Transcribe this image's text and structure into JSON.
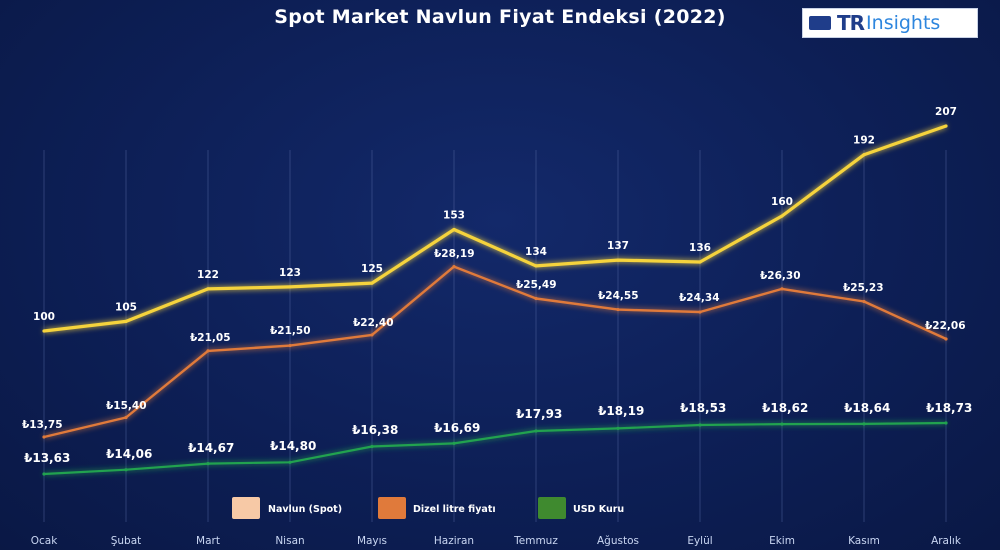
{
  "title": "Spot Market Navlun Fiyat Endeksi (2022)",
  "logo": {
    "brand_bold": "TR",
    "brand_light": "Insights",
    "icon": "truck-icon"
  },
  "colors": {
    "background": "#0d1f56",
    "navlun": "#f5d33c",
    "dizel": "#e07a3b",
    "usd": "#21a24f",
    "gridline": "#5a6ea8"
  },
  "chart_data": {
    "type": "line",
    "categories": [
      "Ocak",
      "Şubat",
      "Mart",
      "Nisan",
      "Mayıs",
      "Haziran",
      "Temmuz",
      "Ağustos",
      "Eylül",
      "Ekim",
      "Kasım",
      "Aralık"
    ],
    "grid": "vertical",
    "legend_position": "bottom",
    "series": [
      {
        "name": "Navlun (Spot)",
        "values": [
          100,
          105,
          122,
          123,
          125,
          153,
          134,
          137,
          136,
          160,
          192,
          207
        ],
        "labels": [
          "100",
          "105",
          "122",
          "123",
          "125",
          "153",
          "134",
          "137",
          "136",
          "160",
          "192",
          "207"
        ]
      },
      {
        "name": "Dizel litre fiyatı",
        "values": [
          13.75,
          15.4,
          21.05,
          21.5,
          22.4,
          28.19,
          25.49,
          24.55,
          24.34,
          26.3,
          25.23,
          22.06
        ],
        "labels": [
          "₺13,75",
          "₺15,40",
          "₺21,05",
          "₺21,50",
          "₺22,40",
          "₺28,19",
          "₺25,49",
          "₺24,55",
          "₺24,34",
          "₺26,30",
          "₺25,23",
          "₺22,06"
        ]
      },
      {
        "name": "USD Kuru",
        "values": [
          13.63,
          14.06,
          14.67,
          14.8,
          16.38,
          16.69,
          17.93,
          18.19,
          18.53,
          18.62,
          18.64,
          18.73
        ],
        "labels": [
          "₺13,63",
          "₺14,06",
          "₺14,67",
          "₺14,80",
          "₺16,38",
          "₺16,69",
          "₺17,93",
          "₺18,19",
          "₺18,53",
          "₺18,62",
          "₺18,64",
          "₺18,73"
        ]
      }
    ]
  }
}
